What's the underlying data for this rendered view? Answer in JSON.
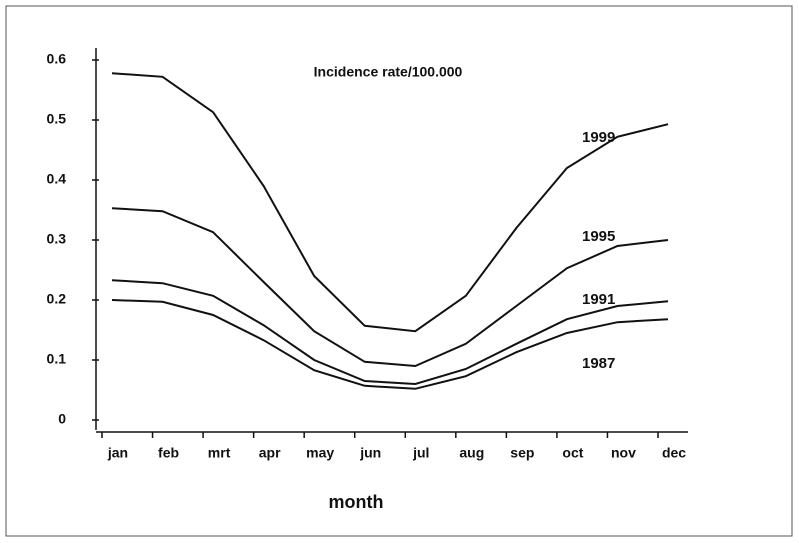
{
  "chart_data": {
    "type": "line",
    "annotation": "Incidence rate/100.000",
    "x_label": "month",
    "categories": [
      "jan",
      "feb",
      "mrt",
      "apr",
      "may",
      "jun",
      "jul",
      "aug",
      "sep",
      "oct",
      "nov",
      "dec"
    ],
    "series": [
      {
        "name": "1999",
        "color": "#111111",
        "values": [
          0.578,
          0.572,
          0.513,
          0.39,
          0.24,
          0.157,
          0.148,
          0.207,
          0.32,
          0.42,
          0.472,
          0.493
        ]
      },
      {
        "name": "1995",
        "color": "#111111",
        "values": [
          0.353,
          0.348,
          0.313,
          0.23,
          0.148,
          0.097,
          0.09,
          0.127,
          0.19,
          0.253,
          0.29,
          0.3
        ]
      },
      {
        "name": "1991",
        "color": "#111111",
        "values": [
          0.233,
          0.228,
          0.207,
          0.158,
          0.1,
          0.065,
          0.06,
          0.085,
          0.127,
          0.168,
          0.19,
          0.198
        ]
      },
      {
        "name": "1987",
        "color": "#111111",
        "values": [
          0.2,
          0.197,
          0.175,
          0.133,
          0.083,
          0.057,
          0.052,
          0.073,
          0.113,
          0.145,
          0.163,
          0.168
        ]
      }
    ],
    "ylim": [
      0,
      0.6
    ],
    "yticks": [
      0,
      0.1,
      0.2,
      0.3,
      0.4,
      0.5,
      0.6
    ],
    "grid": false
  }
}
